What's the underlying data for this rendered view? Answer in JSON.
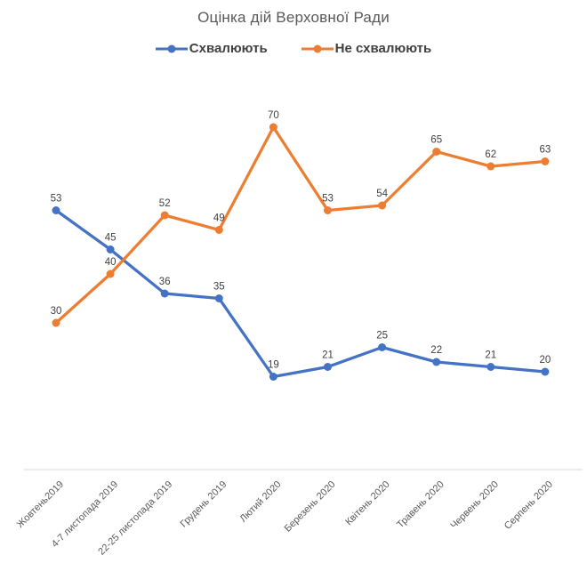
{
  "chart_data": {
    "type": "line",
    "title": "Оцінка дій Верховної Ради",
    "categories": [
      "Жовтень2019",
      "4-7 листопада 2019",
      "22-25 листопада 2019",
      "Грудень 2019",
      "Лютий 2020",
      "Березень 2020",
      "Квітень 2020",
      "Травень 2020",
      "Червень 2020",
      "Серпень 2020"
    ],
    "series": [
      {
        "name": "Схвалюють",
        "color": "#4472C4",
        "values": [
          53,
          45,
          36,
          35,
          19,
          21,
          25,
          22,
          21,
          20
        ]
      },
      {
        "name": "Не схвалюють",
        "color": "#ED7D31",
        "values": [
          30,
          40,
          52,
          49,
          70,
          53,
          54,
          65,
          62,
          63
        ]
      }
    ],
    "ylim": [
      0,
      80
    ],
    "grid": false,
    "legend_position": "top",
    "data_labels": true,
    "x_labels_rotation_deg": 45,
    "axis_color": "#D9D9D9",
    "tick_label_color": "#595959",
    "data_label_color": "#404040",
    "title_color": "#595959"
  }
}
